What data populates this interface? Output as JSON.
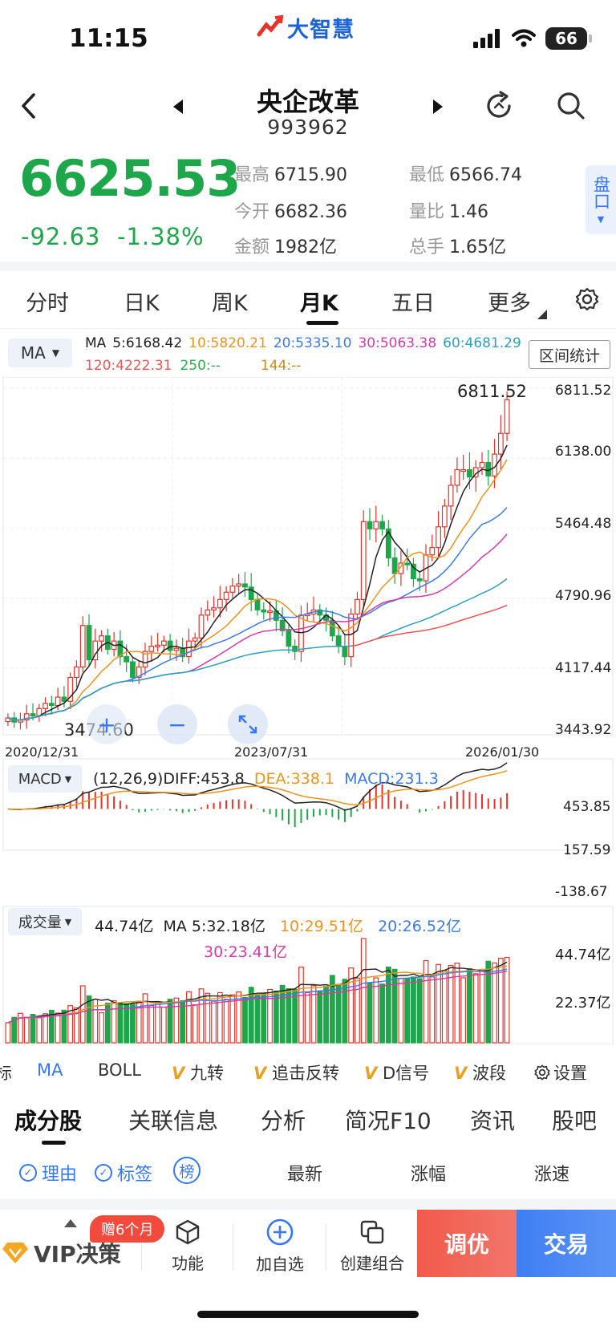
{
  "status_bar": {
    "time": "11:15",
    "battery": "66",
    "logo_text": "大智慧"
  },
  "header": {
    "title": "央企改革",
    "code": "993962"
  },
  "quote": {
    "price": "6625.53",
    "change": "-92.63",
    "change_pct": "-1.38%",
    "stats": [
      {
        "label": "最高",
        "value": "6715.90"
      },
      {
        "label": "最低",
        "value": "6566.74"
      },
      {
        "label": "今开",
        "value": "6682.36"
      },
      {
        "label": "量比",
        "value": "1.46"
      },
      {
        "label": "金额",
        "value": "1982亿"
      },
      {
        "label": "总手",
        "value": "1.65亿"
      }
    ],
    "pankou": "盘口"
  },
  "period_tabs": [
    "分时",
    "日K",
    "周K",
    "月K",
    "五日",
    "更多"
  ],
  "ma_panel": {
    "selector": "MA",
    "range_stats": "区间统计",
    "legend": [
      {
        "text": "MA",
        "color": "#222222"
      },
      {
        "text": "5:6168.42",
        "color": "#222222"
      },
      {
        "text": "10:5820.21",
        "color": "#f0931c"
      },
      {
        "text": "20:5335.10",
        "color": "#3b7be8"
      },
      {
        "text": "30:5063.38",
        "color": "#d63aa9"
      },
      {
        "text": "60:4681.29",
        "color": "#2aa1c0"
      },
      {
        "text": "120:4222.31",
        "color": "#ef5555"
      },
      {
        "text": "250:--",
        "color": "#28b04c"
      },
      {
        "text": "144:--",
        "color": "#c98a1f"
      }
    ],
    "y_ticks": [
      "6811.52",
      "6138.00",
      "5464.48",
      "4790.96",
      "4117.44",
      "3443.92"
    ],
    "high_label": "6811.52",
    "low_label": "3474.60",
    "dates": [
      "2020/12/31",
      "2023/07/31",
      "2026/01/30"
    ]
  },
  "macd_panel": {
    "selector": "MACD",
    "params": "(12,26,9)",
    "diff": "DIFF:453.8",
    "dea": "DEA:338.1",
    "macd": "MACD:231.3",
    "y_ticks": [
      "453.85",
      "157.59",
      "-138.67"
    ]
  },
  "volume_panel": {
    "selector": "成交量",
    "value": "44.74亿",
    "ma5": "MA 5:32.18亿",
    "ma10": "10:29.51亿",
    "ma20": "20:26.52亿",
    "ma30": "30:23.41亿",
    "y_ticks": [
      "44.74亿",
      "22.37亿"
    ]
  },
  "indicator_bar": [
    "标",
    "MA",
    "BOLL",
    "九转",
    "追击反转",
    "D信号",
    "波段",
    "设置"
  ],
  "section_tabs": [
    "成分股",
    "关联信息",
    "分析",
    "简况F10",
    "资讯",
    "股吧"
  ],
  "filters": {
    "reason": "理由",
    "tag": "标签",
    "rank": "榜",
    "cols": [
      "最新",
      "涨幅",
      "涨速"
    ]
  },
  "bottom_bar": {
    "gift": "赠6个月",
    "vip": "VIP决策",
    "items": [
      "功能",
      "加自选",
      "创建组合"
    ],
    "adjust": "调优",
    "trade": "交易"
  },
  "colors": {
    "up": "#e8322a",
    "down": "#1ea64a",
    "accent": "#3478f6"
  },
  "chart_data": {
    "type": "candlestick",
    "period": "monthly",
    "dates_shown": [
      "2020/12/31",
      "2023/07/31",
      "2026/01/30"
    ],
    "ylim": [
      3443.92,
      6811.52
    ],
    "closes": [
      3560,
      3520,
      3540,
      3600,
      3580,
      3650,
      3700,
      3680,
      3760,
      3720,
      3950,
      4050,
      4450,
      4120,
      4300,
      4350,
      4220,
      4300,
      4150,
      4100,
      3950,
      4050,
      4200,
      4250,
      4260,
      4300,
      4210,
      4230,
      4150,
      4300,
      4330,
      4550,
      4600,
      4620,
      4700,
      4770,
      4830,
      4850,
      4820,
      4700,
      4600,
      4580,
      4590,
      4500,
      4400,
      4250,
      4200,
      4550,
      4560,
      4600,
      4550,
      4500,
      4350,
      4250,
      4150,
      4560,
      4700,
      5450,
      5380,
      5450,
      5380,
      5100,
      4950,
      5050,
      5040,
      4900,
      4880,
      5130,
      5200,
      5400,
      5600,
      5800,
      5950,
      5950,
      5880,
      5970,
      6020,
      5890,
      6100,
      6300,
      6625
    ]
  }
}
